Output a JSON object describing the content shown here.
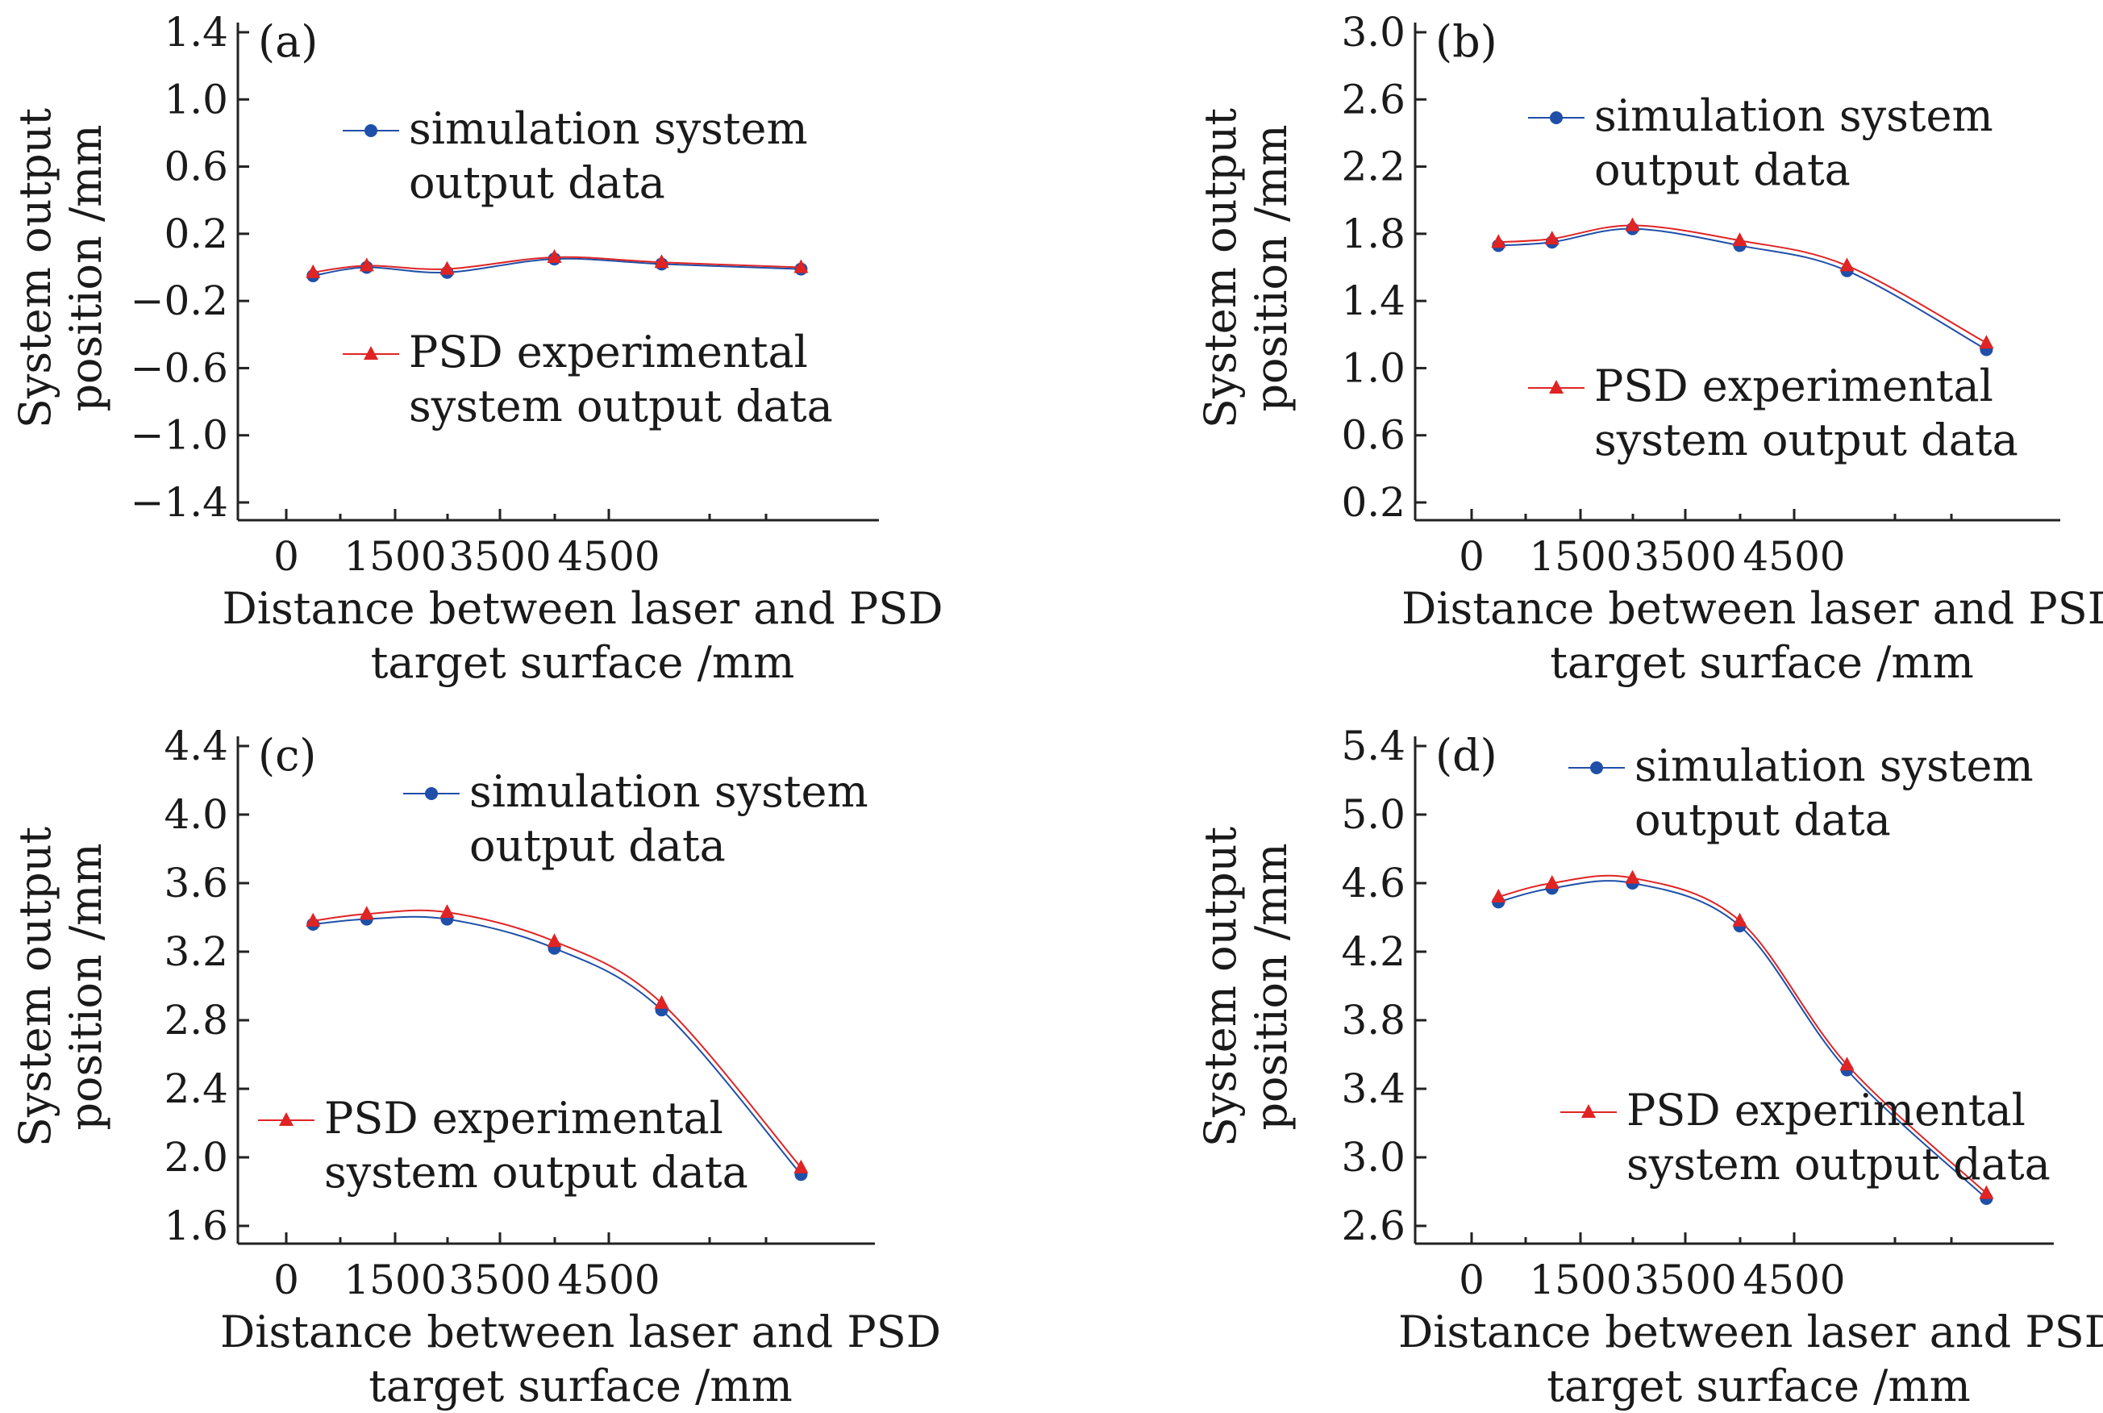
{
  "figure": {
    "background": "#ffffff"
  },
  "colors": {
    "simulation": "#1f4fa8",
    "experimental": "#e02424"
  },
  "chart_data": [
    {
      "type": "line",
      "panel_label": "(a)",
      "xlabel": [
        "Distance between laser and PSD",
        "target surface /mm"
      ],
      "ylabel": [
        "System output",
        "position /mm"
      ],
      "xticks": [
        "0",
        "1500",
        "3500",
        "4500"
      ],
      "yticks": [
        "1.4",
        "1.0",
        "0.6",
        "0.2",
        "−0.2",
        "−0.6",
        "−1.0",
        "−1.4"
      ],
      "ylim": [
        -1.5,
        1.5
      ],
      "legend": [
        {
          "series": 0,
          "lines": [
            "simulation system",
            "output data"
          ],
          "position": "upper-middle"
        },
        {
          "series": 1,
          "lines": [
            "PSD experimental",
            "system output data"
          ],
          "position": "lower-middle"
        }
      ],
      "series": [
        {
          "name": "simulation system output data",
          "marker": "circle",
          "x": [
            250,
            750,
            1500,
            2500,
            3500,
            4800
          ],
          "y": [
            -0.05,
            0.0,
            -0.03,
            0.05,
            0.02,
            -0.01
          ]
        },
        {
          "name": "PSD experimental system output data",
          "marker": "triangle",
          "x": [
            250,
            750,
            1500,
            2500,
            3500,
            4800
          ],
          "y": [
            -0.03,
            0.01,
            -0.01,
            0.06,
            0.03,
            0.0
          ]
        }
      ]
    },
    {
      "type": "line",
      "panel_label": "(b)",
      "xlabel": [
        "Distance between laser and PSD",
        "target surface /mm"
      ],
      "ylabel": [
        "System output",
        "position /mm"
      ],
      "xticks": [
        "0",
        "1500",
        "3500",
        "4500"
      ],
      "yticks": [
        "3.0",
        "2.6",
        "2.2",
        "1.8",
        "1.4",
        "1.0",
        "0.6",
        "0.2"
      ],
      "ylim": [
        0.0,
        3.0
      ],
      "legend": [
        {
          "series": 0,
          "lines": [
            "simulation system",
            "output data"
          ],
          "position": "upper-middle"
        },
        {
          "series": 1,
          "lines": [
            "PSD experimental",
            "system output data"
          ],
          "position": "lower-middle"
        }
      ],
      "series": [
        {
          "name": "simulation system output data",
          "marker": "circle",
          "x": [
            250,
            750,
            1500,
            2500,
            3500,
            4800
          ],
          "y": [
            1.73,
            1.75,
            1.83,
            1.73,
            1.58,
            1.11
          ]
        },
        {
          "name": "PSD experimental system output data",
          "marker": "triangle",
          "x": [
            250,
            750,
            1500,
            2500,
            3500,
            4800
          ],
          "y": [
            1.75,
            1.77,
            1.85,
            1.76,
            1.61,
            1.15
          ]
        }
      ]
    },
    {
      "type": "line",
      "panel_label": "(c)",
      "xlabel": [
        "Distance between laser and PSD",
        "target surface /mm"
      ],
      "ylabel": [
        "System output",
        "position /mm"
      ],
      "xticks": [
        "0",
        "1500",
        "3500",
        "4500"
      ],
      "yticks": [
        "4.4",
        "4.0",
        "3.6",
        "3.2",
        "2.8",
        "2.4",
        "2.0",
        "1.6"
      ],
      "ylim": [
        1.5,
        4.5
      ],
      "legend": [
        {
          "series": 0,
          "lines": [
            "simulation system",
            "output data"
          ],
          "position": "upper-right"
        },
        {
          "series": 1,
          "lines": [
            "PSD experimental",
            "system output data"
          ],
          "position": "lower-left"
        }
      ],
      "series": [
        {
          "name": "simulation system output data",
          "marker": "circle",
          "x": [
            250,
            750,
            1500,
            2500,
            3500,
            4800
          ],
          "y": [
            3.36,
            3.39,
            3.39,
            3.22,
            2.86,
            1.9
          ]
        },
        {
          "name": "PSD experimental system output data",
          "marker": "triangle",
          "x": [
            250,
            750,
            1500,
            2500,
            3500,
            4800
          ],
          "y": [
            3.38,
            3.42,
            3.43,
            3.26,
            2.9,
            1.94
          ]
        }
      ]
    },
    {
      "type": "line",
      "panel_label": "(d)",
      "xlabel": [
        "Distance between laser and PSD",
        "target surface /mm"
      ],
      "ylabel": [
        "System output",
        "position /mm"
      ],
      "xticks": [
        "0",
        "1500",
        "3500",
        "4500"
      ],
      "yticks": [
        "5.4",
        "5.0",
        "4.6",
        "4.2",
        "3.8",
        "3.4",
        "3.0",
        "2.6"
      ],
      "ylim": [
        2.5,
        5.5
      ],
      "legend": [
        {
          "series": 0,
          "lines": [
            "simulation system",
            "output data"
          ],
          "position": "upper-right"
        },
        {
          "series": 1,
          "lines": [
            "PSD experimental",
            "system output data"
          ],
          "position": "lower-right"
        }
      ],
      "series": [
        {
          "name": "simulation system output data",
          "marker": "circle",
          "x": [
            250,
            750,
            1500,
            2500,
            3500,
            4800
          ],
          "y": [
            4.49,
            4.57,
            4.6,
            4.35,
            3.51,
            2.76
          ]
        },
        {
          "name": "PSD experimental system output data",
          "marker": "triangle",
          "x": [
            250,
            750,
            1500,
            2500,
            3500,
            4800
          ],
          "y": [
            4.52,
            4.6,
            4.63,
            4.38,
            3.54,
            2.79
          ]
        }
      ]
    }
  ]
}
